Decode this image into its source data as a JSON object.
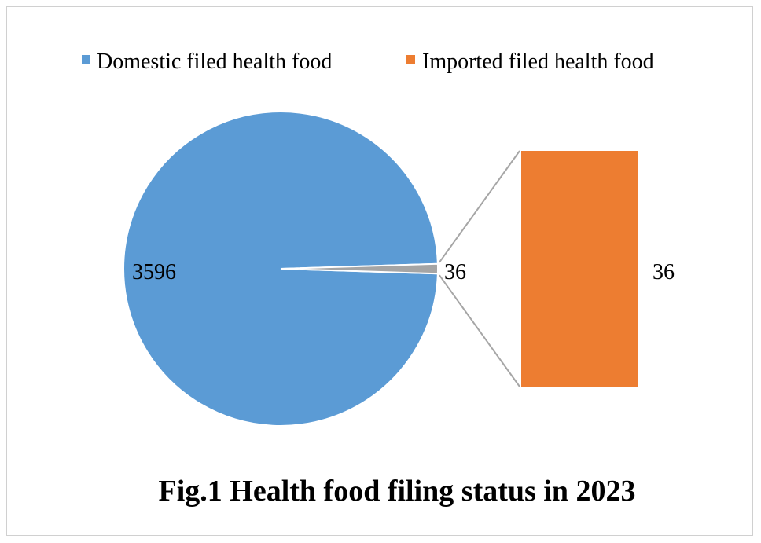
{
  "chart_data": {
    "type": "pie",
    "subtype": "pie-of-pie",
    "categories": [
      "Domestic filed health food",
      "Imported filed health food"
    ],
    "values": [
      3596,
      36
    ],
    "data_labels": [
      "3596",
      "36"
    ],
    "secondary_data_labels": [
      "36"
    ],
    "colors": {
      "domestic": "#5b9bd5",
      "imported": "#ed7d31",
      "other_wedge": "#a5a5a5",
      "connector": "#a6a6a6"
    },
    "legend": {
      "placement": "top",
      "entries": [
        "Domestic filed health food",
        "Imported filed health food"
      ]
    },
    "caption": "Fig.1 Health food filing status in 2023"
  }
}
